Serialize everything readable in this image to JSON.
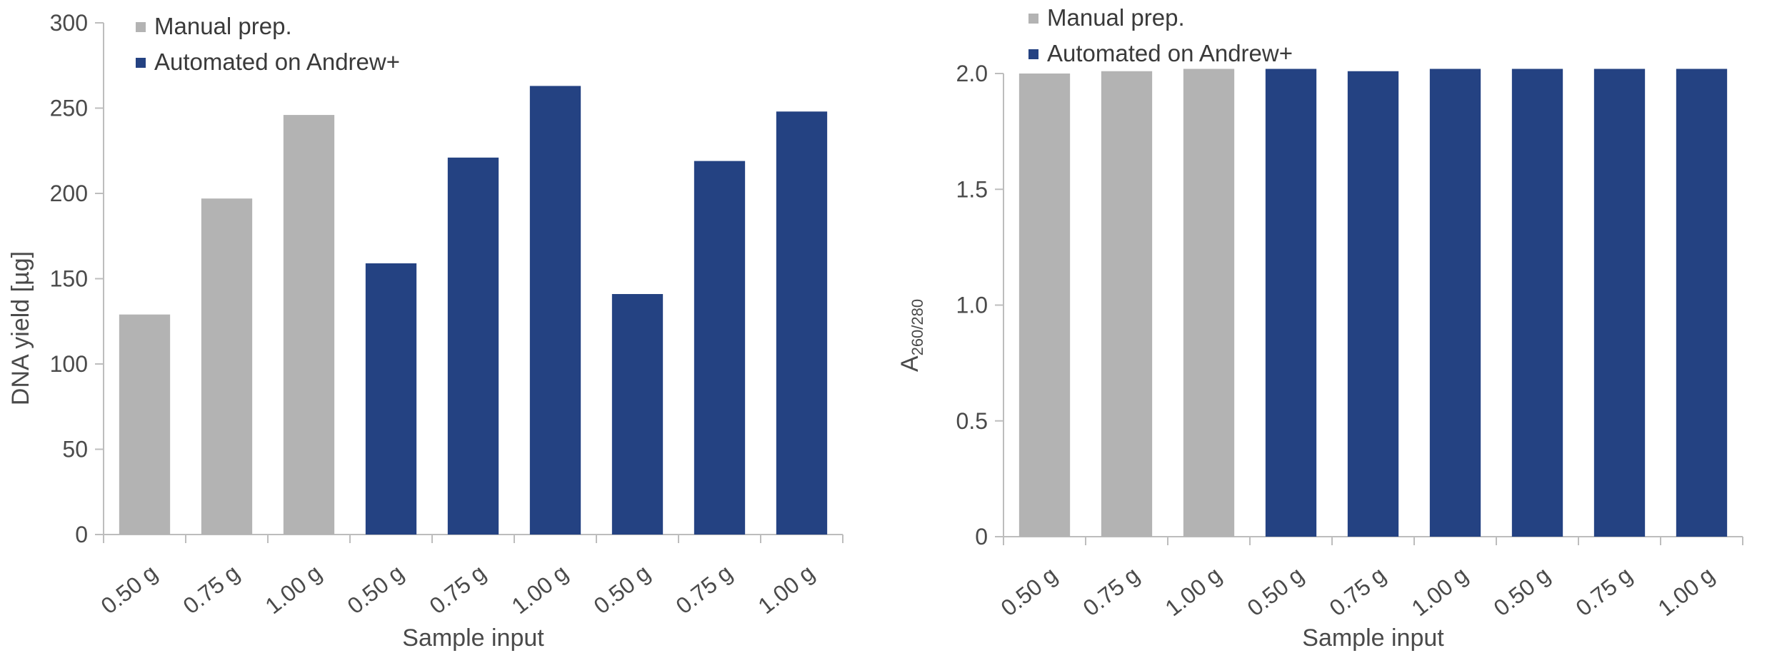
{
  "colors": {
    "manual": "#b3b3b3",
    "automated": "#244282",
    "axis": "#bdbdbd",
    "text": "#4a4a4a"
  },
  "chart_data": [
    {
      "type": "bar",
      "categories": [
        "0.50 g",
        "0.75 g",
        "1.00 g",
        "0.50 g",
        "0.75 g",
        "1.00 g",
        "0.50 g",
        "0.75 g",
        "1.00 g"
      ],
      "values": [
        129,
        197,
        246,
        159,
        221,
        263,
        141,
        219,
        248
      ],
      "bar_groups": [
        "manual",
        "manual",
        "manual",
        "automated",
        "automated",
        "automated",
        "automated",
        "automated",
        "automated"
      ],
      "series": [
        {
          "name": "Manual prep.",
          "key": "manual"
        },
        {
          "name": "Automated on Andrew+",
          "key": "automated"
        }
      ],
      "xlabel": "Sample input",
      "ylabel": "DNA yield [µg]",
      "ylim": [
        0,
        300
      ],
      "yticks": [
        "0",
        "50",
        "100",
        "150",
        "200",
        "250",
        "300"
      ],
      "grid": false,
      "legend": "top-left"
    },
    {
      "type": "bar",
      "categories": [
        "0.50 g",
        "0.75 g",
        "1.00 g",
        "0.50 g",
        "0.75 g",
        "1.00 g",
        "0.50 g",
        "0.75 g",
        "1.00 g"
      ],
      "values": [
        2.0,
        2.01,
        2.02,
        2.02,
        2.01,
        2.02,
        2.02,
        2.02,
        2.02
      ],
      "bar_groups": [
        "manual",
        "manual",
        "manual",
        "automated",
        "automated",
        "automated",
        "automated",
        "automated",
        "automated"
      ],
      "series": [
        {
          "name": "Manual prep.",
          "key": "manual"
        },
        {
          "name": "Automated on Andrew+",
          "key": "automated"
        }
      ],
      "xlabel": "Sample input",
      "ylabel_main": "A",
      "ylabel_sub": "260/280",
      "ylim": [
        0,
        2.0
      ],
      "yticks": [
        "0",
        "0.5",
        "1.0",
        "1.5",
        "2.0"
      ],
      "grid": false,
      "legend": "top-left"
    }
  ]
}
